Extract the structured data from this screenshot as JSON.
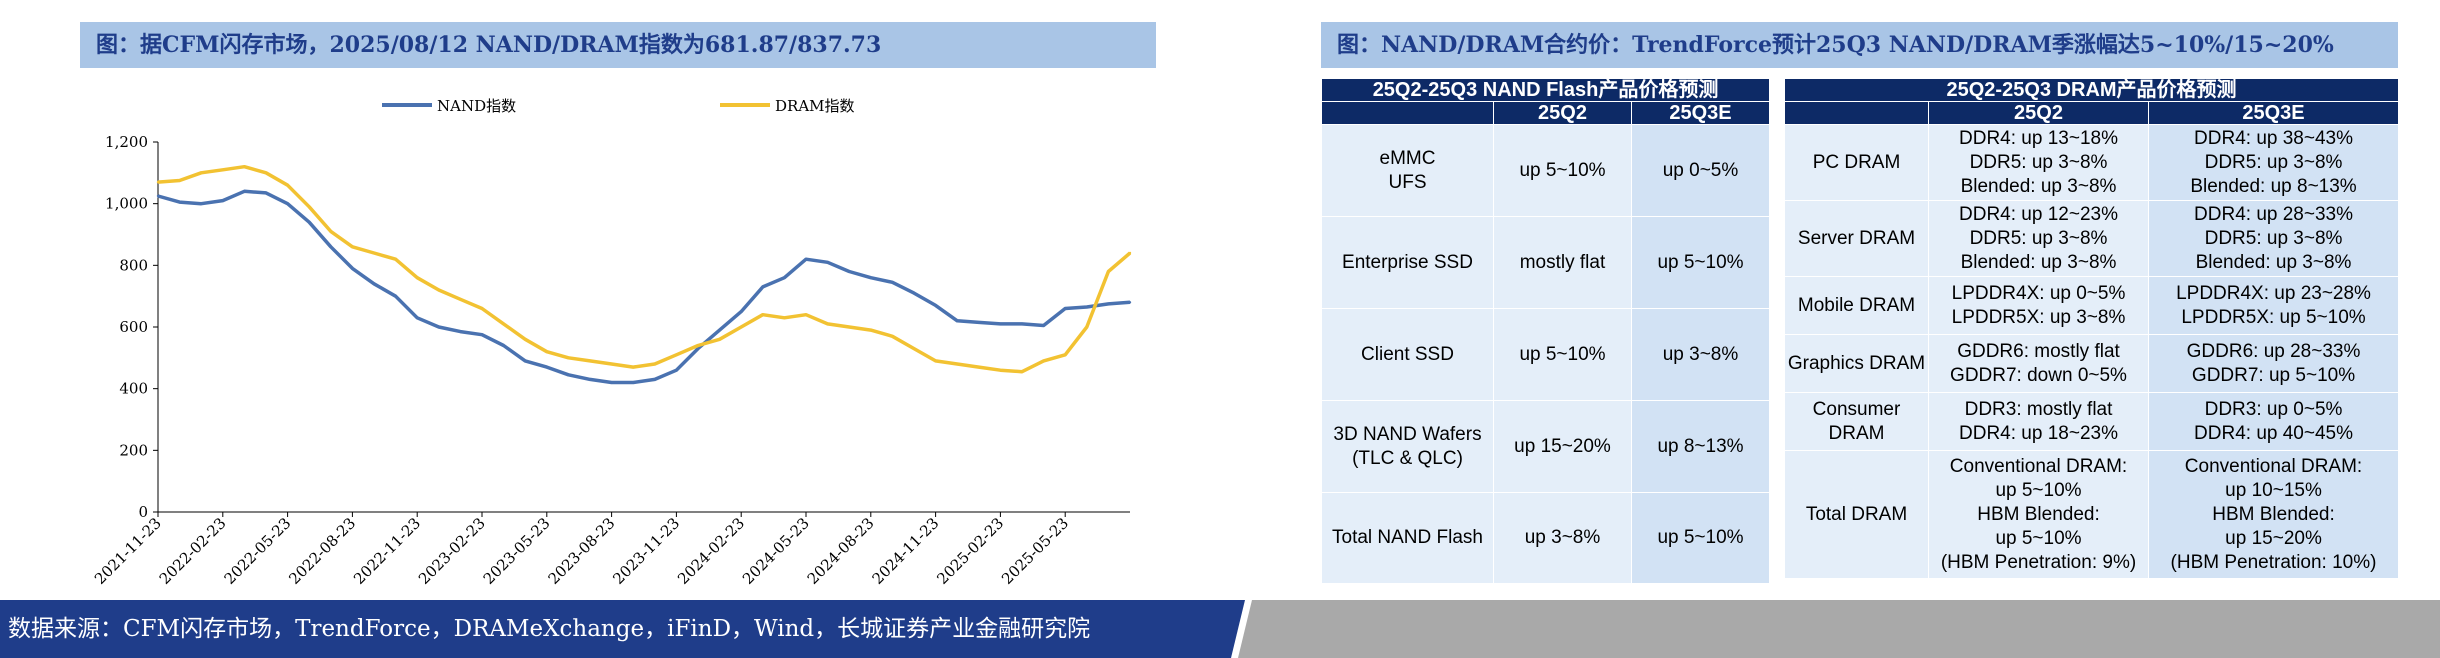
{
  "left_title": "图：据CFM闪存市场，2025/08/12 NAND/DRAM指数为681.87/837.73",
  "right_title": "图：NAND/DRAM合约价：TrendForce预计25Q3 NAND/DRAM季涨幅达5~10%/15~20%",
  "colors": {
    "nand": "#4a72b0",
    "dram": "#f2c232",
    "title_bg": "#a9c5e6",
    "header_bg": "#0d2a66"
  },
  "chart_data": {
    "type": "line",
    "title": "",
    "xlabel": "",
    "ylabel": "",
    "ylim": [
      0,
      1200
    ],
    "yticks": [
      "0",
      "200",
      "400",
      "600",
      "800",
      "1,000",
      "1,200"
    ],
    "x_tick_labels": [
      "2021-11-23",
      "2022-02-23",
      "2022-05-23",
      "2022-08-23",
      "2022-11-23",
      "2023-02-23",
      "2023-05-23",
      "2023-08-23",
      "2023-11-23",
      "2024-02-23",
      "2024-05-23",
      "2024-08-23",
      "2024-11-23",
      "2025-02-23",
      "2025-05-23"
    ],
    "x": [
      "2021-11",
      "2021-12",
      "2022-01",
      "2022-02",
      "2022-03",
      "2022-04",
      "2022-05",
      "2022-06",
      "2022-07",
      "2022-08",
      "2022-09",
      "2022-10",
      "2022-11",
      "2022-12",
      "2023-01",
      "2023-02",
      "2023-03",
      "2023-04",
      "2023-05",
      "2023-06",
      "2023-07",
      "2023-08",
      "2023-09",
      "2023-10",
      "2023-11",
      "2023-12",
      "2024-01",
      "2024-02",
      "2024-03",
      "2024-04",
      "2024-05",
      "2024-06",
      "2024-07",
      "2024-08",
      "2024-09",
      "2024-10",
      "2024-11",
      "2024-12",
      "2025-01",
      "2025-02",
      "2025-03",
      "2025-04",
      "2025-05",
      "2025-06",
      "2025-07",
      "2025-08"
    ],
    "legend_position": "top",
    "series": [
      {
        "name": "NAND指数",
        "values": [
          1025,
          1005,
          1000,
          1010,
          1040,
          1035,
          1000,
          940,
          860,
          790,
          740,
          700,
          630,
          600,
          585,
          575,
          540,
          490,
          470,
          445,
          430,
          420,
          420,
          430,
          460,
          530,
          590,
          650,
          730,
          760,
          820,
          810,
          780,
          760,
          745,
          710,
          670,
          620,
          615,
          610,
          610,
          605,
          660,
          665,
          675,
          680
        ]
      },
      {
        "name": "DRAM指数",
        "values": [
          1070,
          1075,
          1100,
          1110,
          1120,
          1100,
          1060,
          990,
          910,
          860,
          840,
          820,
          760,
          720,
          690,
          660,
          610,
          560,
          520,
          500,
          490,
          480,
          470,
          480,
          510,
          540,
          560,
          600,
          640,
          630,
          640,
          610,
          600,
          590,
          570,
          530,
          490,
          480,
          470,
          460,
          455,
          490,
          510,
          600,
          780,
          840
        ]
      }
    ]
  },
  "nand_table": {
    "title": "25Q2-25Q3 NAND Flash产品价格预测",
    "columns": [
      "25Q2",
      "25Q3E"
    ],
    "rows": [
      {
        "label": "eMMC\nUFS",
        "q2": "up 5~10%",
        "q3": "up 0~5%"
      },
      {
        "label": "Enterprise SSD",
        "q2": "mostly flat",
        "q3": "up 5~10%"
      },
      {
        "label": "Client SSD",
        "q2": "up 5~10%",
        "q3": "up 3~8%"
      },
      {
        "label": "3D NAND Wafers\n(TLC & QLC)",
        "q2": "up 15~20%",
        "q3": "up 8~13%"
      },
      {
        "label": "Total NAND Flash",
        "q2": "up 3~8%",
        "q3": "up 5~10%"
      }
    ]
  },
  "dram_table": {
    "title": "25Q2-25Q3 DRAM产品价格预测",
    "columns": [
      "25Q2",
      "25Q3E"
    ],
    "rows": [
      {
        "label": "PC DRAM",
        "q2": "DDR4: up 13~18%\nDDR5: up 3~8%\nBlended: up 3~8%",
        "q3": "DDR4: up 38~43%\nDDR5: up 3~8%\nBlended: up 8~13%"
      },
      {
        "label": "Server DRAM",
        "q2": "DDR4: up 12~23%\nDDR5: up 3~8%\nBlended: up 3~8%",
        "q3": "DDR4: up 28~33%\nDDR5: up 3~8%\nBlended: up 3~8%"
      },
      {
        "label": "Mobile DRAM",
        "q2": "LPDDR4X: up 0~5%\nLPDDR5X: up 3~8%",
        "q3": "LPDDR4X: up 23~28%\nLPDDR5X: up 5~10%"
      },
      {
        "label": "Graphics DRAM",
        "q2": "GDDR6: mostly flat\nGDDR7: down 0~5%",
        "q3": "GDDR6: up 28~33%\nGDDR7: up 5~10%"
      },
      {
        "label": "Consumer\nDRAM",
        "q2": "DDR3: mostly flat\nDDR4: up 18~23%",
        "q3": "DDR3: up 0~5%\nDDR4: up 40~45%"
      },
      {
        "label": "Total DRAM",
        "q2": "Conventional DRAM:\nup 5~10%\nHBM Blended:\nup 5~10%\n(HBM Penetration: 9%)",
        "q3": "Conventional DRAM:\nup 10~15%\nHBM Blended:\nup 15~20%\n(HBM Penetration: 10%)"
      }
    ]
  },
  "footer": {
    "source": "数据来源：CFM闪存市场，TrendForce，DRAMeXchange，iFinD，Wind，长城证券产业金融研究院"
  }
}
